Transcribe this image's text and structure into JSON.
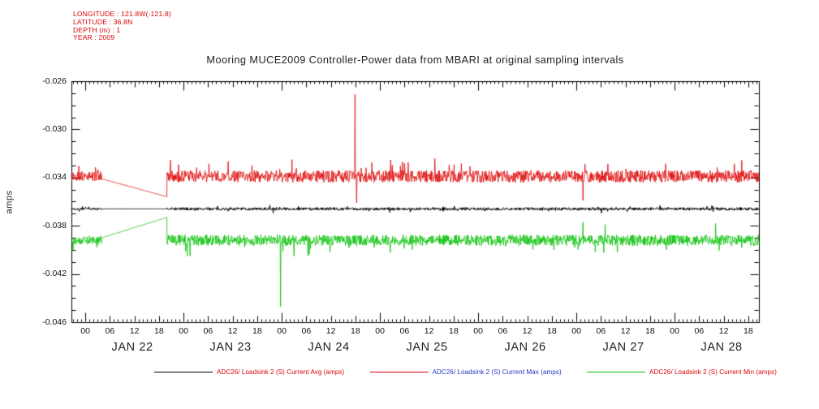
{
  "meta": {
    "color": "#dd0000",
    "lines": [
      "LONGITUDE : 121.8W(-121.8)",
      "LATITUDE : 36.8N",
      "DEPTH (m) : 1",
      "YEAR : 2009"
    ]
  },
  "colors": {
    "axis": "#000000",
    "red": "#dd0000",
    "green": "#00c000",
    "black": "#000000",
    "legend_blue": "#2233bb"
  },
  "chart_data": {
    "type": "line",
    "title": "Mooring MUCE2009 Controller-Power data from MBARI at original sampling intervals",
    "ylabel": "amps",
    "ylim": [
      -0.046,
      -0.026
    ],
    "yticks": [
      -0.026,
      -0.03,
      -0.034,
      -0.038,
      -0.042,
      -0.046
    ],
    "y_minor_step": 0.001,
    "y_major_step": 0.004,
    "grid": false,
    "legend_position": "bottom",
    "x_unit": "hours since JAN 22 2009 00:00",
    "xlim": [
      -3.4,
      164.6
    ],
    "x_major_step_hours": 6,
    "x_minor_step_hours": 1,
    "x_hour_labels": [
      "00",
      "06",
      "12",
      "18"
    ],
    "days": [
      {
        "label": "JAN 22",
        "start_hour": 0
      },
      {
        "label": "JAN 23",
        "start_hour": 24
      },
      {
        "label": "JAN 24",
        "start_hour": 48
      },
      {
        "label": "JAN 25",
        "start_hour": 72
      },
      {
        "label": "JAN 26",
        "start_hour": 96
      },
      {
        "label": "JAN 27",
        "start_hour": 120
      },
      {
        "label": "JAN 28",
        "start_hour": 144
      }
    ],
    "data_gap_hours": [
      4,
      20
    ],
    "series": [
      {
        "id": "avg",
        "name": "ADC26/ Loadsink 2 (S) Current Avg (amps)",
        "color": "#000000",
        "label_color": "#dd0000",
        "baseline": -0.0366,
        "noise": 0.00012,
        "burst_prob": 0.05,
        "burst_amp": 0.00025,
        "burst_sign": 0,
        "gap_values": [
          -0.0366,
          -0.0366
        ],
        "spikes": []
      },
      {
        "id": "max",
        "name": "ADC26/ Loadsink 2 (S) Current Max (amps)",
        "color": "#dd0000",
        "label_color": "#2233bb",
        "baseline": -0.0339,
        "noise": 0.0005,
        "burst_prob": 0.04,
        "burst_amp": 0.0013,
        "burst_sign": 1,
        "gap_values": [
          -0.0341,
          -0.0356
        ],
        "spikes": [
          {
            "t": 65.9,
            "value": -0.0271
          },
          {
            "t": 66.3,
            "value": -0.0361
          },
          {
            "t": 121.6,
            "value": -0.0359
          }
        ]
      },
      {
        "id": "min",
        "name": "ADC26/ Loadsink 2 (S) Current Min (amps)",
        "color": "#00c000",
        "label_color": "#dd0000",
        "baseline": -0.0392,
        "noise": 0.00045,
        "burst_prob": 0.04,
        "burst_amp": 0.0011,
        "burst_sign": -1,
        "gap_values": [
          -0.039,
          -0.0373
        ],
        "spikes": [
          {
            "t": 47.7,
            "value": -0.0447
          },
          {
            "t": 121.6,
            "value": -0.0377
          },
          {
            "t": 127.0,
            "value": -0.0379
          },
          {
            "t": 154.0,
            "value": -0.0378
          }
        ]
      }
    ]
  }
}
